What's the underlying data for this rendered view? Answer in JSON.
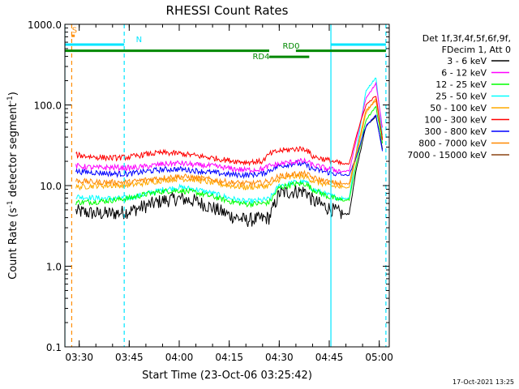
{
  "chart_data": {
    "type": "line",
    "title": "RHESSI Count Rates",
    "xlabel": "Start Time (23-Oct-06 03:25:42)",
    "ylabel": "Count Rate (s-1 detector segment-1)",
    "ylabel_parts": [
      "Count Rate (s",
      "-1",
      " detector segment",
      "-1",
      ")"
    ],
    "yscale": "log",
    "ylim": [
      0.1,
      1000
    ],
    "xlim": [
      "03:25:42",
      "05:03:00"
    ],
    "x_tick_labels": [
      "03:30",
      "03:45",
      "04:00",
      "04:15",
      "04:30",
      "04:45",
      "05:00"
    ],
    "y_tick_labels": [
      "0.1",
      "1.0",
      "10.0",
      "100.0",
      "1000.0"
    ],
    "grid": false,
    "legend_position": "right",
    "legend_header": [
      "Det 1f,3f,4f,5f,6f,9f,",
      "FDecim 1, Att 0"
    ],
    "footer_timestamp": "17-Oct-2021 13:25",
    "x": [
      "03:29",
      "03:35",
      "03:40",
      "03:45",
      "03:50",
      "03:55",
      "04:00",
      "04:05",
      "04:10",
      "04:15",
      "04:20",
      "04:25",
      "04:27",
      "04:30",
      "04:35",
      "04:38",
      "04:40",
      "04:45",
      "04:49",
      "04:51",
      "04:53",
      "04:56",
      "04:59",
      "05:01"
    ],
    "series": [
      {
        "name": "3 - 6 keV",
        "color": "#000000",
        "values": [
          4.8,
          4.5,
          4.5,
          4.8,
          5.6,
          6.5,
          6.9,
          6.4,
          5.3,
          4.3,
          3.7,
          3.9,
          4.0,
          8.0,
          8.5,
          8.5,
          6.5,
          5.2,
          4.4,
          4.5,
          15,
          55,
          73,
          28
        ]
      },
      {
        "name": "6 - 12 keV",
        "color": "#ff00ff",
        "values": [
          17.5,
          16.6,
          16.8,
          16.5,
          17.2,
          18.5,
          19.0,
          18.0,
          17.5,
          16.3,
          15.6,
          16.0,
          17.5,
          18.5,
          20.0,
          20.0,
          18.0,
          16.0,
          15.0,
          15.2,
          35,
          120,
          185,
          50
        ]
      },
      {
        "name": "12 - 25 keV",
        "color": "#00ff00",
        "values": [
          6.2,
          6.3,
          6.6,
          7.0,
          7.8,
          8.5,
          8.7,
          8.2,
          7.3,
          6.4,
          5.9,
          6.0,
          6.2,
          9.5,
          10.5,
          10.5,
          9.0,
          7.2,
          6.5,
          6.7,
          18,
          65,
          95,
          33
        ]
      },
      {
        "name": "25 - 50 keV",
        "color": "#00ffff",
        "values": [
          7.3,
          7.0,
          6.9,
          7.0,
          7.9,
          8.9,
          9.5,
          9.0,
          8.0,
          7.0,
          6.3,
          6.6,
          6.8,
          10.0,
          11.0,
          11.0,
          9.0,
          7.5,
          6.9,
          7.0,
          25,
          150,
          220,
          40
        ]
      },
      {
        "name": "50 - 100 keV",
        "color": "#ffaa00",
        "values": [
          9.5,
          10.0,
          10.0,
          10.1,
          10.8,
          11.6,
          12.2,
          11.8,
          10.8,
          10.0,
          9.5,
          9.8,
          10.0,
          12.0,
          13.0,
          13.0,
          11.5,
          10.0,
          9.5,
          9.6,
          22,
          80,
          120,
          38
        ]
      },
      {
        "name": "100 - 300 keV",
        "color": "#ff0000",
        "values": [
          24.0,
          22.5,
          22.0,
          22.5,
          24.5,
          25.5,
          25.0,
          23.5,
          22.0,
          20.5,
          19.5,
          20.0,
          24.5,
          27.0,
          28.5,
          28.5,
          23.0,
          20.5,
          18.5,
          18.5,
          40,
          100,
          130,
          36
        ]
      },
      {
        "name": "300 - 800 keV",
        "color": "#0000ff",
        "values": [
          15.0,
          14.5,
          14.0,
          14.0,
          15.0,
          15.8,
          16.0,
          15.3,
          14.5,
          13.8,
          13.5,
          14.0,
          15.5,
          17.5,
          19.0,
          18.0,
          16.0,
          14.5,
          13.5,
          13.5,
          22,
          55,
          75,
          26
        ]
      },
      {
        "name": "800 - 7000 keV",
        "color": "#ff8800",
        "values": [
          11.5,
          11.0,
          11.0,
          11.0,
          11.8,
          12.5,
          13.0,
          12.5,
          11.8,
          11.0,
          10.6,
          10.8,
          11.5,
          13.0,
          14.0,
          14.0,
          12.5,
          11.0,
          10.5,
          10.5,
          25,
          85,
          115,
          37
        ]
      },
      {
        "name": "7000 - 15000 keV",
        "color": "#8b4513",
        "values": [
          null,
          null,
          null,
          null,
          null,
          null,
          null,
          null,
          null,
          null,
          null,
          null,
          null,
          null,
          null,
          null,
          null,
          null,
          null,
          null,
          null,
          null,
          null,
          null
        ]
      }
    ],
    "annotations": {
      "bars": [
        {
          "label": "S",
          "color": "#ff8c00",
          "start": "03:27:40",
          "end": "03:28:40",
          "value": 720
        },
        {
          "label": "N",
          "color": "#00e5ff",
          "start": "03:25:42",
          "end": "03:43:30",
          "value": 560
        },
        {
          "label": "N",
          "color": "#00e5ff",
          "start": "04:45:30",
          "end": "05:02:00",
          "value": 560
        },
        {
          "label": "RD0",
          "color": "#008800",
          "start": "03:25:42",
          "end": "04:27:00",
          "value": 470
        },
        {
          "label": "RD0",
          "color": "#008800",
          "start": "04:35:00",
          "end": "05:02:00",
          "value": 470
        },
        {
          "label": "RD4",
          "color": "#008800",
          "start": "04:27:00",
          "end": "04:39:00",
          "value": 395
        }
      ],
      "bar_labels": [
        {
          "text": "S",
          "color": "#ff8c00",
          "time": "03:27:50",
          "value": 780
        },
        {
          "text": "N",
          "color": "#00e5ff",
          "time": "03:47:00",
          "value": 600
        },
        {
          "text": "RD0",
          "color": "#008800",
          "time": "04:31:00",
          "value": 500
        },
        {
          "text": "RD4",
          "color": "#008800",
          "time": "04:22:00",
          "value": 370
        }
      ],
      "vlines": [
        {
          "time": "03:25:42",
          "color": "#00e5ff",
          "style": "solid"
        },
        {
          "time": "03:27:45",
          "color": "#ff8c00",
          "style": "dashed"
        },
        {
          "time": "03:43:30",
          "color": "#00e5ff",
          "style": "dashed"
        },
        {
          "time": "04:45:30",
          "color": "#00e5ff",
          "style": "solid"
        },
        {
          "time": "05:02:00",
          "color": "#00e5ff",
          "style": "dashed"
        }
      ]
    }
  }
}
